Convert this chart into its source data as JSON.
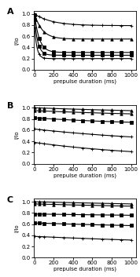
{
  "panels": [
    "A",
    "B",
    "C"
  ],
  "x_max": 1000,
  "xlabel": "prepulse duration (ms)",
  "ylabel": "I/Io",
  "ylim": [
    0.0,
    1.05
  ],
  "yticks": [
    0.0,
    0.2,
    0.4,
    0.6,
    0.8,
    1.0
  ],
  "xticks": [
    0,
    200,
    400,
    600,
    800,
    1000
  ],
  "panel_A": {
    "curves": [
      {
        "start": 1.0,
        "plateau": 0.79,
        "tau": 180,
        "marker": "+"
      },
      {
        "start": 1.0,
        "plateau": 0.55,
        "tau": 80,
        "marker": "^"
      },
      {
        "start": 0.98,
        "plateau": 0.31,
        "tau": 50,
        "marker": "s"
      },
      {
        "start": 0.9,
        "plateau": 0.26,
        "tau": 35,
        "marker": "s"
      },
      {
        "start": 0.75,
        "plateau": 0.2,
        "tau": 25,
        "marker": "+"
      }
    ]
  },
  "panel_B": {
    "curves": [
      {
        "start": 1.0,
        "plateau": 0.87,
        "tau": 2000,
        "marker": "^"
      },
      {
        "start": 0.95,
        "plateau": 0.83,
        "tau": 1500,
        "marker": "^"
      },
      {
        "start": 0.82,
        "plateau": 0.68,
        "tau": 1200,
        "marker": "s"
      },
      {
        "start": 0.62,
        "plateau": 0.33,
        "tau": 1500,
        "marker": "+"
      },
      {
        "start": 0.38,
        "plateau": 0.09,
        "tau": 1200,
        "marker": "+"
      }
    ]
  },
  "panel_C": {
    "curves": [
      {
        "start": 1.0,
        "plateau": 0.86,
        "tau": 3000,
        "marker": "^"
      },
      {
        "start": 0.96,
        "plateau": 0.84,
        "tau": 2500,
        "marker": "^"
      },
      {
        "start": 0.78,
        "plateau": 0.7,
        "tau": 3000,
        "marker": "s"
      },
      {
        "start": 0.62,
        "plateau": 0.5,
        "tau": 2000,
        "marker": "s"
      },
      {
        "start": 0.38,
        "plateau": 0.18,
        "tau": 2500,
        "marker": "+"
      }
    ]
  },
  "line_color": "#000000",
  "bg_color": "#ffffff",
  "marker_size": 2.5,
  "linewidth": 0.8,
  "x_markers": [
    0,
    50,
    100,
    200,
    300,
    400,
    500,
    600,
    700,
    800,
    900,
    1000
  ]
}
